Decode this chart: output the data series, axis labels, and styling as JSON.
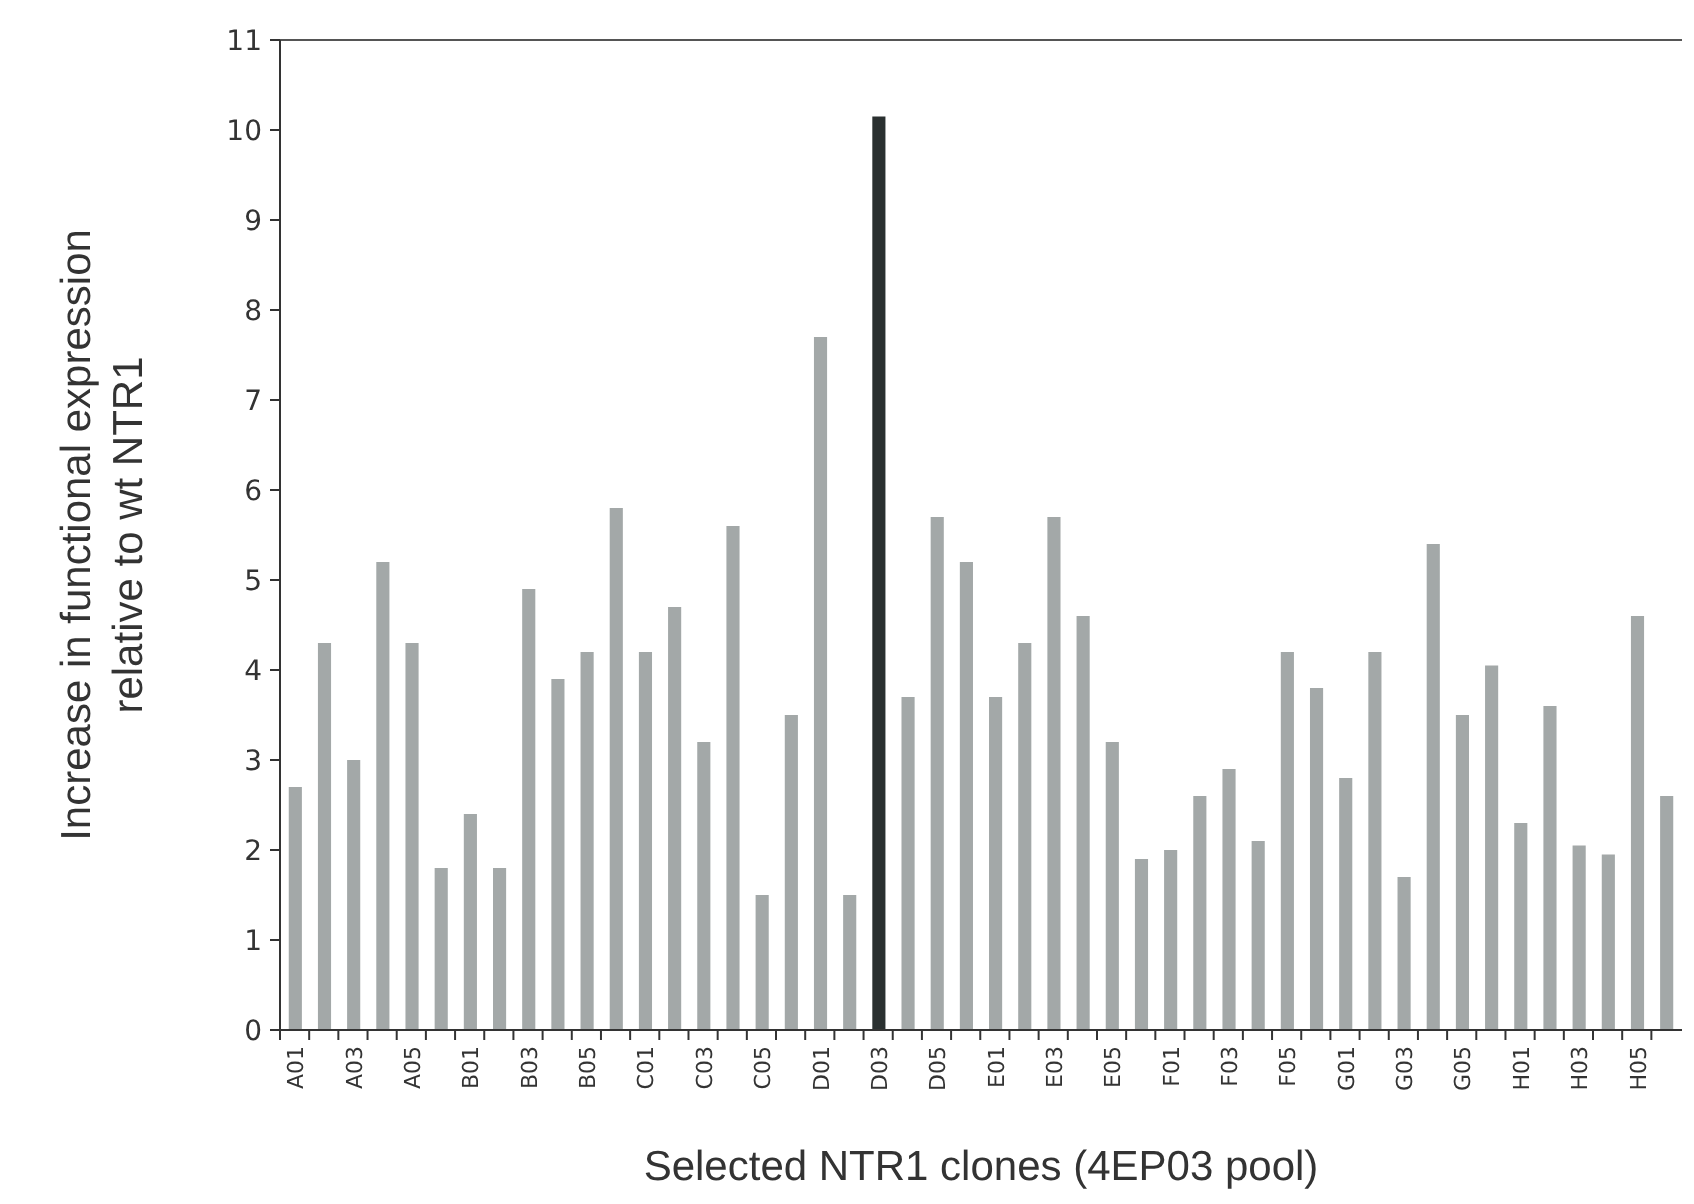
{
  "chart_data": {
    "type": "bar",
    "xlabel": "Selected NTR1 clones (4EP03 pool)",
    "ylabel": "Increase in functional expression relative to wt NTR1",
    "categories": [
      "A01",
      null,
      "A03",
      null,
      "A05",
      null,
      "B01",
      null,
      "B03",
      null,
      "B05",
      null,
      "C01",
      null,
      "C03",
      null,
      "C05",
      null,
      "D01",
      null,
      "D03",
      null,
      "D05",
      null,
      "E01",
      null,
      "E03",
      null,
      "E05",
      null,
      "F01",
      null,
      "F03",
      null,
      "F05",
      null,
      "G01",
      null,
      "G03",
      null,
      "G05",
      null,
      "H01",
      null,
      "H03",
      null,
      "H05",
      null
    ],
    "values": [
      2.7,
      4.3,
      3.0,
      5.2,
      4.3,
      1.8,
      2.4,
      1.8,
      4.9,
      3.9,
      4.2,
      5.8,
      4.2,
      4.7,
      3.2,
      5.6,
      1.5,
      3.5,
      7.7,
      1.5,
      10.15,
      3.7,
      5.7,
      5.2,
      3.7,
      4.3,
      5.7,
      4.6,
      3.2,
      1.9,
      2.0,
      2.6,
      2.9,
      2.1,
      4.2,
      3.8,
      2.8,
      4.2,
      1.7,
      5.4,
      3.5,
      4.05,
      2.3,
      3.6,
      2.05,
      1.95,
      4.6,
      2.6
    ],
    "colors": [
      "#a3a8a8",
      "#a3a8a8",
      "#a3a8a8",
      "#a3a8a8",
      "#a3a8a8",
      "#a3a8a8",
      "#a3a8a8",
      "#a3a8a8",
      "#a3a8a8",
      "#a3a8a8",
      "#a3a8a8",
      "#a3a8a8",
      "#a3a8a8",
      "#a3a8a8",
      "#a3a8a8",
      "#a3a8a8",
      "#a3a8a8",
      "#a3a8a8",
      "#a3a8a8",
      "#a3a8a8",
      "#2a3030",
      "#a3a8a8",
      "#a3a8a8",
      "#a3a8a8",
      "#a3a8a8",
      "#a3a8a8",
      "#a3a8a8",
      "#a3a8a8",
      "#a3a8a8",
      "#a3a8a8",
      "#a3a8a8",
      "#a3a8a8",
      "#a3a8a8",
      "#a3a8a8",
      "#a3a8a8",
      "#a3a8a8",
      "#a3a8a8",
      "#a3a8a8",
      "#a3a8a8",
      "#a3a8a8",
      "#a3a8a8",
      "#a3a8a8",
      "#a3a8a8",
      "#a3a8a8",
      "#a3a8a8",
      "#a3a8a8",
      "#a3a8a8",
      "#a3a8a8"
    ],
    "ylim": [
      0,
      11
    ],
    "yticks": [
      0,
      1,
      2,
      3,
      4,
      5,
      6,
      7,
      8,
      9,
      10,
      11
    ]
  }
}
